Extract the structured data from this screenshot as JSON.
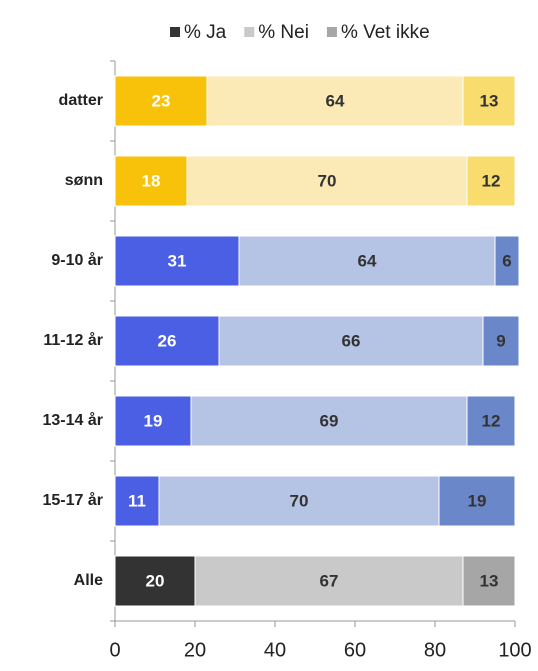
{
  "chart_data": {
    "type": "stacked_barh",
    "categories": [
      "datter",
      "sønn",
      "9-10 år",
      "11-12 år",
      "13-14 år",
      "15-17 år",
      "Alle"
    ],
    "series": [
      {
        "name": "% Ja",
        "color": "#333333",
        "values": [
          23,
          18,
          31,
          26,
          19,
          11,
          20
        ],
        "point_colors": [
          "#f9c20a",
          "#f9c20a",
          "#4a5fe3",
          "#4a5fe3",
          "#4a5fe3",
          "#4a5fe3",
          "#333333"
        ]
      },
      {
        "name": "% Nei",
        "color": "#c9c9c9",
        "values": [
          64,
          70,
          64,
          66,
          69,
          70,
          67
        ],
        "point_colors": [
          "#fbeab6",
          "#fbeab6",
          "#b5c4e4",
          "#b5c4e4",
          "#b5c4e4",
          "#b5c4e4",
          "#c9c9c9"
        ]
      },
      {
        "name": "% Vet ikke",
        "color": "#a6a6a6",
        "values": [
          13,
          12,
          6,
          9,
          12,
          19,
          13
        ],
        "point_colors": [
          "#f9dc6e",
          "#f9dc6e",
          "#6a88c9",
          "#6a88c9",
          "#6a88c9",
          "#6a88c9",
          "#a6a6a6"
        ]
      }
    ],
    "xlim": [
      0,
      100
    ],
    "xticks": [
      0,
      20,
      40,
      60,
      80,
      100
    ],
    "legend": "top"
  }
}
